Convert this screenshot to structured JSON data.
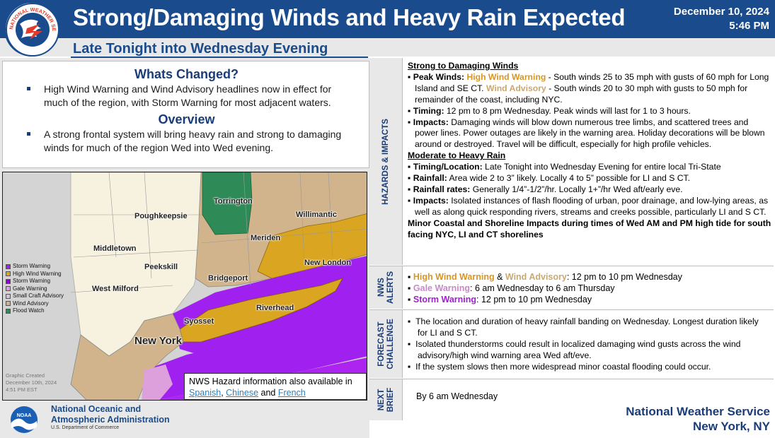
{
  "header": {
    "logo_text": "NATIONAL WEATHER SERVICE",
    "title": "Strong/Damaging Winds and Heavy Rain Expected",
    "date": "December 10, 2024",
    "time": "5:46 PM",
    "subtitle": "Late Tonight into Wednesday Evening",
    "brand_color": "#1a4b8c"
  },
  "whats_changed": {
    "heading": "Whats Changed?",
    "text": "High Wind Warning and Wind Advisory headlines now in effect for much of the region, with Storm Warning for most adjacent waters."
  },
  "overview": {
    "heading": "Overview",
    "text": "A strong frontal system will bring heavy rain and strong to damaging winds for much of the region Wed into Wed evening."
  },
  "map": {
    "labels": {
      "poughkeepsie": "Poughkeepsie",
      "middletown": "Middletown",
      "peekskill": "Peekskill",
      "west_milford": "West Milford",
      "torrington": "Torrington",
      "willimantic": "Willimantic",
      "meriden": "Meriden",
      "new_london": "New London",
      "bridgeport": "Bridgeport",
      "riverhead": "Riverhead",
      "syosset": "Syosset",
      "new_york": "New York"
    },
    "legend": [
      {
        "label": "Storm Warning",
        "color": "#a020f0"
      },
      {
        "label": "High Wind Warning",
        "color": "#daa520"
      },
      {
        "label": "Storm Warning",
        "color": "#9400d3"
      },
      {
        "label": "Gale Warning",
        "color": "#dda0dd"
      },
      {
        "label": "Small Craft Advisory",
        "color": "#d8bfd8"
      },
      {
        "label": "Wind Advisory",
        "color": "#d2b48c"
      },
      {
        "label": "Flood Watch",
        "color": "#2e8b57"
      }
    ],
    "graphic_created": [
      "Graphic Created",
      "December 10th, 2024",
      "4:51 PM EST"
    ],
    "hazard_info": {
      "line1": "NWS Hazard information also available in",
      "spanish": "Spanish",
      "comma": ",",
      "chinese": "Chinese",
      "and": " and ",
      "french": "French"
    }
  },
  "noaa": {
    "line1": "National Oceanic and",
    "line2": "Atmospheric Administration",
    "dept": "U.S. Department of Commerce"
  },
  "sections": {
    "hazards_label": "HAZARDS & IMPACTS",
    "alerts_label_1": "NWS",
    "alerts_label_2": "ALERTS",
    "forecast_label_1": "FORECAST",
    "forecast_label_2": "CHALLENGE",
    "brief_label_1": "NEXT",
    "brief_label_2": "BRIEF"
  },
  "hazards": {
    "winds_heading": "Strong to Damaging Winds",
    "peak_label": "Peak Winds:",
    "peak_hww": "High Wind Warning",
    "peak_text1": " - South winds 25 to 35 mph with gusts of 60 mph for Long Island and SE CT. ",
    "peak_wa": "Wind Advisory",
    "peak_text2": " - South winds 20 to 30 mph with gusts to 50 mph for remainder of the coast, including NYC.",
    "timing_label": "Timing:",
    "timing_text": " 12 pm to 8 pm Wednesday. Peak winds will last for 1 to 3 hours.",
    "impacts_label": "Impacts:",
    "impacts_text": " Damaging winds will blow down numerous tree limbs, and scattered trees and power lines. Power outages are likely in the warning area. Holiday decorations will be blown around or destroyed. Travel will be difficult, especially for high profile vehicles.",
    "rain_heading": "Moderate to Heavy Rain",
    "tl_label": "Timing/Location:",
    "tl_text": " Late Tonight into Wednesday Evening for entire local Tri-State",
    "rainfall_label": "Rainfall:",
    "rainfall_text": " Area wide 2 to 3” likely. Locally 4 to 5” possible for LI and S CT.",
    "rates_label": "Rainfall rates:",
    "rates_text": " Generally 1/4”-1/2”/hr. Locally 1+”/hr Wed aft/early eve.",
    "rimpacts_label": "Impacts:",
    "rimpacts_text": " Isolated instances of flash flooding of urban, poor drainage, and low-lying areas, as well as along quick responding rivers, streams and creeks possible, particularly LI and S CT.",
    "coastal": "Minor Coastal and Shoreline Impacts during times of Wed AM and PM high tide for south facing NYC, LI and CT shorelines"
  },
  "alerts": {
    "hww": "High Wind Warning",
    "amp": " & ",
    "wa": "Wind Advisory",
    "hww_time": ": 12 pm to 10 pm Wednesday",
    "gale": "Gale Warning",
    "gale_time": ": 6 am Wednesday to 6 am Thursday",
    "storm": "Storm Warning",
    "storm_time": ": 12 pm to 10 pm Wednesday"
  },
  "forecast_challenge": [
    "The location and duration of heavy rainfall banding on Wednesday. Longest duration likely for LI and S CT.",
    "Isolated thunderstorms could result in localized damaging wind gusts across the wind advisory/high wind warning area Wed aft/eve.",
    "If the system slows then more widespread minor coastal flooding could occur."
  ],
  "next_brief": "By 6 am Wednesday",
  "footer": {
    "line1": "National Weather Service",
    "line2": "New York, NY"
  }
}
